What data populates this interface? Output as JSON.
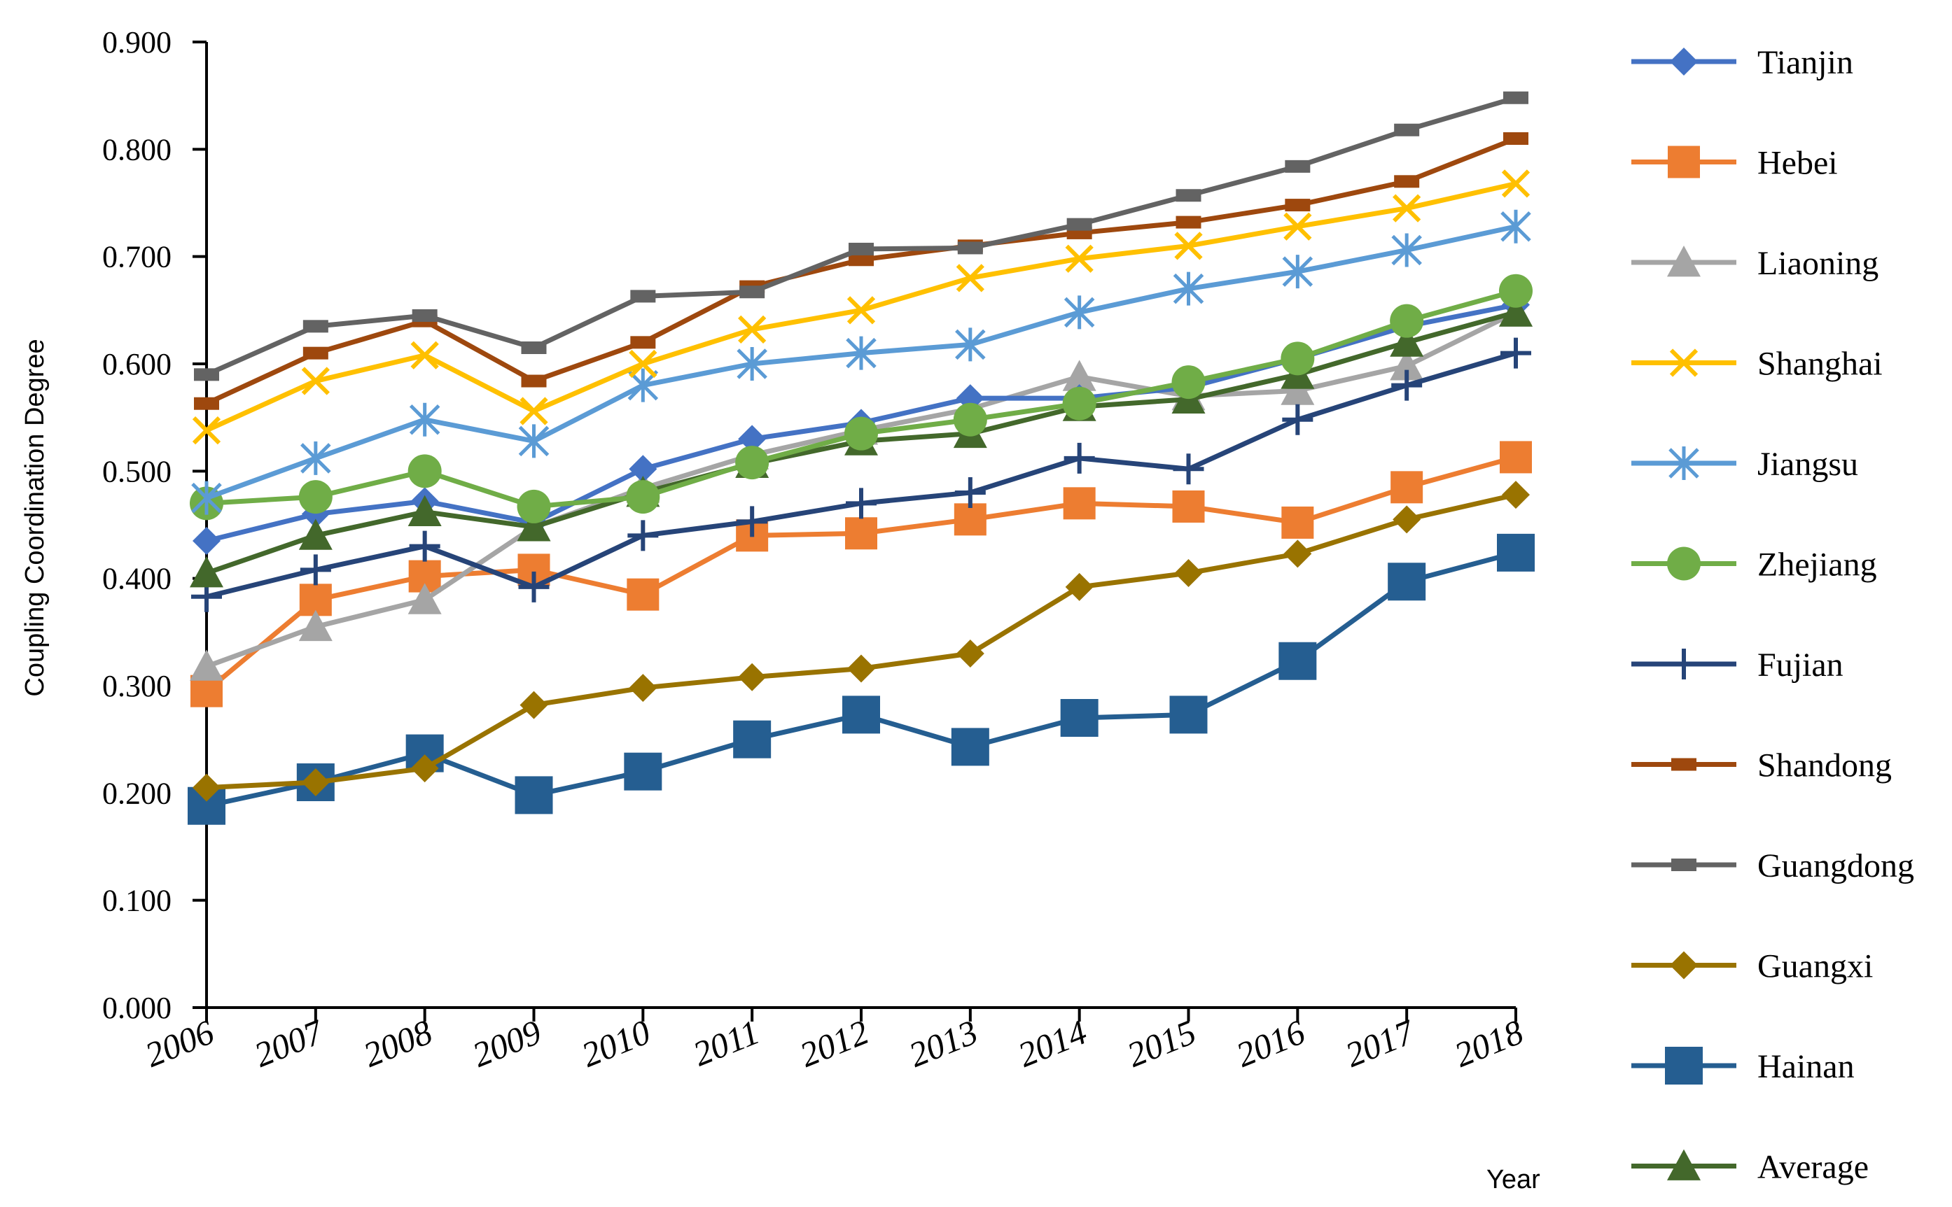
{
  "chart_data": {
    "type": "line",
    "title": "",
    "xlabel": "Year",
    "ylabel": "Coupling Coordination Degree",
    "ylim": [
      0,
      0.9
    ],
    "y_ticks": [
      "0.000",
      "0.100",
      "0.200",
      "0.300",
      "0.400",
      "0.500",
      "0.600",
      "0.700",
      "0.800",
      "0.900"
    ],
    "categories": [
      "2006",
      "2007",
      "2008",
      "2009",
      "2010",
      "2011",
      "2012",
      "2013",
      "2014",
      "2015",
      "2016",
      "2017",
      "2018"
    ],
    "grid": false,
    "legend_position": "right",
    "series": [
      {
        "name": "Tianjin",
        "color": "#4472C4",
        "marker": "diamond",
        "values": [
          0.435,
          0.46,
          0.472,
          0.452,
          0.502,
          0.53,
          0.545,
          0.568,
          0.568,
          0.578,
          0.605,
          0.635,
          0.655
        ]
      },
      {
        "name": "Hebei",
        "color": "#ED7D31",
        "marker": "square",
        "values": [
          0.295,
          0.38,
          0.402,
          0.408,
          0.385,
          0.44,
          0.442,
          0.455,
          0.47,
          0.467,
          0.452,
          0.485,
          0.513
        ]
      },
      {
        "name": "Liaoning",
        "color": "#A5A5A5",
        "marker": "triangle",
        "values": [
          0.318,
          0.355,
          0.38,
          0.448,
          0.484,
          0.515,
          0.538,
          0.558,
          0.588,
          0.57,
          0.575,
          0.598,
          0.648
        ]
      },
      {
        "name": "Shanghai",
        "color": "#FFC000",
        "marker": "x",
        "values": [
          0.538,
          0.584,
          0.608,
          0.556,
          0.6,
          0.632,
          0.65,
          0.68,
          0.698,
          0.71,
          0.728,
          0.745,
          0.768
        ]
      },
      {
        "name": "Jiangsu",
        "color": "#5B9BD5",
        "marker": "star",
        "values": [
          0.475,
          0.512,
          0.548,
          0.528,
          0.58,
          0.6,
          0.61,
          0.618,
          0.648,
          0.67,
          0.686,
          0.706,
          0.728
        ]
      },
      {
        "name": "Zhejiang",
        "color": "#70AD47",
        "marker": "circle",
        "values": [
          0.47,
          0.476,
          0.5,
          0.467,
          0.476,
          0.508,
          0.535,
          0.548,
          0.563,
          0.583,
          0.605,
          0.64,
          0.668
        ]
      },
      {
        "name": "Fujian",
        "color": "#264478",
        "marker": "plus",
        "values": [
          0.383,
          0.408,
          0.43,
          0.392,
          0.44,
          0.453,
          0.47,
          0.48,
          0.512,
          0.502,
          0.548,
          0.58,
          0.61
        ]
      },
      {
        "name": "Shandong",
        "color": "#9E480E",
        "marker": "dash",
        "values": [
          0.563,
          0.61,
          0.64,
          0.584,
          0.62,
          0.672,
          0.697,
          0.71,
          0.722,
          0.732,
          0.748,
          0.77,
          0.81
        ]
      },
      {
        "name": "Guangdong",
        "color": "#636363",
        "marker": "dash",
        "values": [
          0.59,
          0.635,
          0.645,
          0.615,
          0.663,
          0.667,
          0.707,
          0.708,
          0.73,
          0.757,
          0.784,
          0.818,
          0.848
        ]
      },
      {
        "name": "Guangxi",
        "color": "#997300",
        "marker": "diamond",
        "values": [
          0.205,
          0.21,
          0.223,
          0.282,
          0.298,
          0.308,
          0.316,
          0.33,
          0.392,
          0.405,
          0.423,
          0.455,
          0.478
        ]
      },
      {
        "name": "Hainan",
        "color": "#255E91",
        "marker": "big-square",
        "values": [
          0.188,
          0.21,
          0.237,
          0.198,
          0.22,
          0.25,
          0.273,
          0.243,
          0.27,
          0.273,
          0.323,
          0.397,
          0.424
        ]
      },
      {
        "name": "Average",
        "color": "#43682B",
        "marker": "triangle",
        "values": [
          0.405,
          0.44,
          0.462,
          0.448,
          0.48,
          0.507,
          0.528,
          0.535,
          0.56,
          0.567,
          0.59,
          0.62,
          0.648
        ]
      }
    ]
  }
}
